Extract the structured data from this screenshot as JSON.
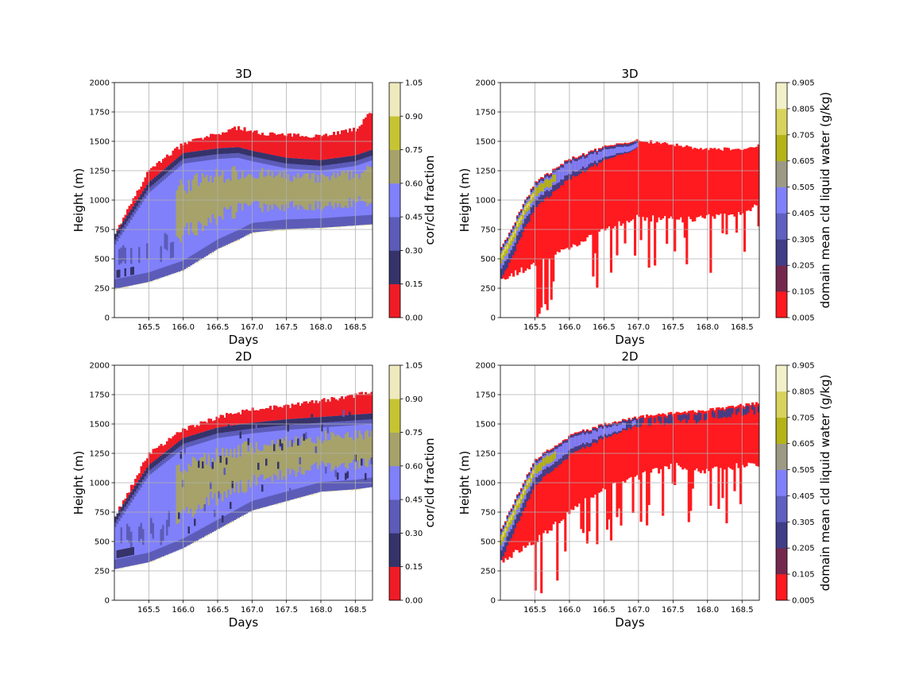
{
  "chart_data": [
    {
      "type": "heatmap",
      "title": "3D",
      "xlabel": "Days",
      "ylabel": "Height (m)",
      "xlim": [
        165.0,
        168.75
      ],
      "ylim": [
        0,
        2000
      ],
      "xticks": [
        "165.5",
        "166.0",
        "166.5",
        "167.0",
        "167.5",
        "168.0",
        "168.5"
      ],
      "yticks": [
        "0",
        "250",
        "500",
        "750",
        "1000",
        "1250",
        "1500",
        "1750",
        "2000"
      ],
      "grid": true,
      "field": "frac",
      "colorbar": {
        "label": "cor/cld fraction",
        "ticks": [
          "0.00",
          "0.15",
          "0.30",
          "0.45",
          "0.60",
          "0.75",
          "0.90",
          "1.05"
        ],
        "colors": [
          "#ef1c26",
          "#36336a",
          "#5c5cb8",
          "#8080fa",
          "#a6a26a",
          "#c6c433",
          "#eeeabd"
        ]
      },
      "series": {
        "x": [
          165.0,
          165.5,
          166.0,
          166.5,
          166.8,
          167.0,
          167.5,
          168.0,
          168.5,
          168.75
        ],
        "cloud_base": [
          280,
          340,
          440,
          620,
          700,
          760,
          790,
          800,
          820,
          830
        ],
        "cloud_top": [
          700,
          1150,
          1400,
          1440,
          1450,
          1420,
          1360,
          1340,
          1380,
          1430
        ],
        "envelope_top": [
          700,
          1250,
          1480,
          1560,
          1620,
          1580,
          1550,
          1550,
          1600,
          1760
        ]
      }
    },
    {
      "type": "heatmap",
      "title": "3D",
      "xlabel": "Days",
      "ylabel": "Height (m)",
      "xlim": [
        165.0,
        168.75
      ],
      "ylim": [
        0,
        2000
      ],
      "xticks": [
        "165.5",
        "166.0",
        "166.5",
        "167.0",
        "167.5",
        "168.0",
        "168.5"
      ],
      "yticks": [
        "0",
        "250",
        "500",
        "750",
        "1000",
        "1250",
        "1500",
        "1750",
        "2000"
      ],
      "grid": true,
      "field": "lwc",
      "colorbar": {
        "label": "domain mean cld liquid water (g/kg)",
        "ticks": [
          "0.005",
          "0.105",
          "0.205",
          "0.305",
          "0.405",
          "0.505",
          "0.605",
          "0.705",
          "0.805",
          "0.905"
        ],
        "colors": [
          "#fe1a1f",
          "#75284e",
          "#3f3e87",
          "#6060c1",
          "#8080fa",
          "#9c9a84",
          "#b5b317",
          "#d7d35d",
          "#f2f0c9"
        ]
      },
      "series": {
        "x": [
          165.0,
          165.5,
          166.0,
          166.5,
          167.0,
          167.5,
          168.0,
          168.5,
          168.75
        ],
        "cloud_base": [
          330,
          450,
          600,
          750,
          850,
          830,
          850,
          900,
          950
        ],
        "cloud_top": [
          580,
          1150,
          1350,
          1450,
          1510,
          1470,
          1430,
          1440,
          1470
        ]
      }
    },
    {
      "type": "heatmap",
      "title": "2D",
      "xlabel": "Days",
      "ylabel": "Height (m)",
      "xlim": [
        165.0,
        168.75
      ],
      "ylim": [
        0,
        2000
      ],
      "xticks": [
        "165.5",
        "166.0",
        "166.5",
        "167.0",
        "167.5",
        "168.0",
        "168.5"
      ],
      "yticks": [
        "0",
        "250",
        "500",
        "750",
        "1000",
        "1250",
        "1500",
        "1750",
        "2000"
      ],
      "grid": true,
      "field": "frac",
      "colorbar": {
        "label": "cor/cld fraction",
        "ticks": [
          "0.00",
          "0.15",
          "0.30",
          "0.45",
          "0.60",
          "0.75",
          "0.90",
          "1.05"
        ],
        "colors": [
          "#ef1c26",
          "#36336a",
          "#5c5cb8",
          "#8080fa",
          "#a6a26a",
          "#c6c433",
          "#eeeabd"
        ]
      },
      "series": {
        "x": [
          165.0,
          165.5,
          166.0,
          166.5,
          167.0,
          167.5,
          168.0,
          168.5,
          168.75
        ],
        "cloud_base": [
          300,
          360,
          480,
          640,
          800,
          880,
          960,
          980,
          1000
        ],
        "cloud_top": [
          700,
          1150,
          1380,
          1470,
          1510,
          1540,
          1560,
          1580,
          1590
        ],
        "envelope_top": [
          700,
          1250,
          1450,
          1560,
          1620,
          1650,
          1700,
          1740,
          1780
        ]
      }
    },
    {
      "type": "heatmap",
      "title": "2D",
      "xlabel": "Days",
      "ylabel": "Height (m)",
      "xlim": [
        165.0,
        168.75
      ],
      "ylim": [
        0,
        2000
      ],
      "xticks": [
        "165.5",
        "166.0",
        "166.5",
        "167.0",
        "167.5",
        "168.0",
        "168.5"
      ],
      "yticks": [
        "0",
        "250",
        "500",
        "750",
        "1000",
        "1250",
        "1500",
        "1750",
        "2000"
      ],
      "grid": true,
      "field": "lwc",
      "colorbar": {
        "label": "domain mean cld liquid water (g/kg)",
        "ticks": [
          "0.005",
          "0.105",
          "0.205",
          "0.305",
          "0.405",
          "0.505",
          "0.605",
          "0.705",
          "0.805",
          "0.905"
        ],
        "colors": [
          "#fe1a1f",
          "#75284e",
          "#3f3e87",
          "#6060c1",
          "#8080fa",
          "#9c9a84",
          "#b5b317",
          "#d7d35d",
          "#f2f0c9"
        ]
      },
      "series": {
        "x": [
          165.0,
          165.5,
          166.0,
          166.5,
          167.0,
          167.5,
          168.0,
          168.5,
          168.75
        ],
        "cloud_base": [
          330,
          500,
          750,
          950,
          1050,
          1150,
          1100,
          1150,
          1150
        ],
        "cloud_top": [
          600,
          1200,
          1400,
          1500,
          1560,
          1590,
          1620,
          1660,
          1680
        ]
      }
    }
  ]
}
